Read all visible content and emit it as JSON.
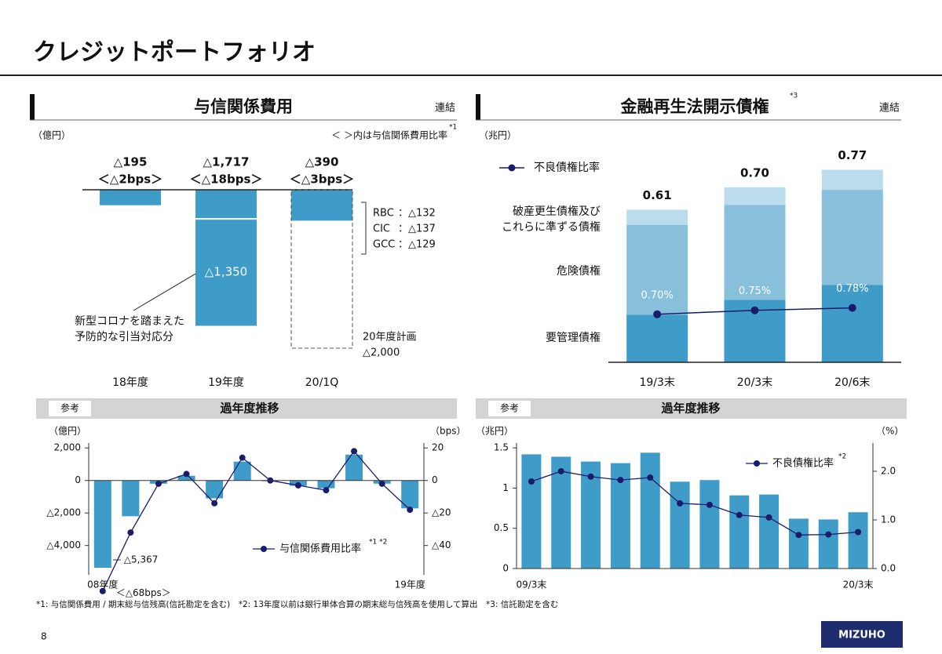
{
  "title": "クレジットポートフォリオ",
  "chart_data": [
    {
      "type": "bar",
      "title": "与信関係費用",
      "scope": "連結",
      "unit": "（億円）",
      "note": "＜ ＞内は与信関係費用比率",
      "note_marker": "*1",
      "categories": [
        "18年度",
        "19年度",
        "20/1Q"
      ],
      "values": [
        -195,
        -1717,
        -390
      ],
      "value_labels": [
        "△195",
        "△1,717",
        "△390"
      ],
      "ratio_labels": [
        "＜△2bps＞",
        "＜△18bps＞",
        "＜△3bps＞"
      ],
      "color": "#3f9cc9",
      "covid": {
        "name": [
          "新型コロナを踏まえた",
          "予防的な引当対応分"
        ],
        "values": [
          null,
          -1350,
          null
        ],
        "value_labels": [
          null,
          "△1,350",
          null
        ]
      },
      "plan": {
        "name": "20年度計画",
        "values": [
          null,
          null,
          -2000
        ],
        "value_labels": [
          null,
          null,
          "△2,000"
        ]
      },
      "breakdown": [
        {
          "name": "RBC",
          "value": -132,
          "label": "：△132"
        },
        {
          "name": "CIC",
          "value": -137,
          "label": "：△137"
        },
        {
          "name": "GCC",
          "value": -129,
          "label": "：△129"
        }
      ],
      "ylim": [
        -2000,
        0
      ]
    },
    {
      "type": "stacked_bar",
      "title": "金融再生法開示債権",
      "title_marker": "*3",
      "scope": "連結",
      "unit": "（兆円）",
      "categories": [
        "19/3末",
        "20/3末",
        "20/6末"
      ],
      "series": [
        {
          "name": "要管理債権",
          "color": "#3f9cc9",
          "values": [
            0.19,
            0.25,
            0.31
          ]
        },
        {
          "name": "危険債権",
          "color": "#88c0dc",
          "values": [
            0.36,
            0.38,
            0.38
          ]
        },
        {
          "name": [
            "破産更生債権及び",
            "これらに準ずる債権"
          ],
          "color": "#badcec",
          "values": [
            0.06,
            0.07,
            0.08
          ]
        },
        {
          "name": "不良債権比率",
          "type": "line",
          "axis": "y2",
          "color": "#1b1b6b",
          "values": [
            0.7,
            0.75,
            0.78
          ],
          "value_labels": [
            "0.70%",
            "0.75%",
            "0.78%"
          ]
        }
      ],
      "totals": {
        "values": [
          0.61,
          0.7,
          0.77
        ],
        "value_labels": [
          "0.61",
          "0.70",
          "0.77"
        ]
      },
      "ylim": [
        0,
        0.8
      ],
      "y2lim": [
        0.1,
        2.6
      ]
    },
    {
      "type": "combo",
      "tag": "参考",
      "title": "過年度推移",
      "unit": "（億円）",
      "unit2": "（bps）",
      "categories": [
        "08年度",
        null,
        null,
        null,
        null,
        null,
        null,
        null,
        null,
        null,
        null,
        "19年度"
      ],
      "series": [
        {
          "type": "bar",
          "color": "#3f9cc9",
          "values": [
            -5367,
            -2200,
            -200,
            290,
            -1100,
            1160,
            -50,
            -330,
            -480,
            1590,
            -195,
            -1717
          ],
          "value_labels": [
            "△5,367",
            null,
            null,
            null,
            null,
            null,
            null,
            null,
            null,
            null,
            null,
            null
          ]
        },
        {
          "name": "与信関係費用比率",
          "name_marker": "*1 *2",
          "type": "line",
          "axis": "y2",
          "color": "#1b1b6b",
          "values": [
            -68,
            -32,
            -2,
            4,
            -14,
            14,
            0,
            -3,
            -6,
            18,
            -2,
            -18
          ],
          "value_labels": [
            "＜△68bps＞",
            null,
            null,
            null,
            null,
            null,
            null,
            null,
            null,
            null,
            null,
            null
          ]
        }
      ],
      "ylim": [
        -5800,
        2300
      ],
      "yticks": [
        {
          "value": 2000,
          "label": "2,000"
        },
        0,
        {
          "value": -2000,
          "label": "△2,000"
        },
        {
          "value": -4000,
          "label": "△4,000"
        }
      ],
      "y2lim": [
        -58,
        23
      ],
      "y2ticks": [
        20,
        0,
        {
          "value": -20,
          "label": "△20"
        },
        {
          "value": -40,
          "label": "△40"
        }
      ]
    },
    {
      "type": "combo",
      "tag": "参考",
      "title": "過年度推移",
      "unit": "（兆円）",
      "unit2": "（%）",
      "categories": [
        "09/3末",
        null,
        null,
        null,
        null,
        null,
        null,
        null,
        null,
        null,
        null,
        "20/3末"
      ],
      "series": [
        {
          "type": "bar",
          "color": "#3f9cc9",
          "values": [
            1.42,
            1.39,
            1.33,
            1.31,
            1.44,
            1.08,
            1.1,
            0.91,
            0.92,
            0.62,
            0.61,
            0.7
          ]
        },
        {
          "name": "不良債権比率",
          "name_marker": "*2",
          "type": "line",
          "axis": "y2",
          "color": "#1b1b6b",
          "values": [
            1.79,
            2.0,
            1.89,
            1.82,
            1.87,
            1.34,
            1.31,
            1.1,
            1.05,
            0.69,
            0.7,
            0.75
          ]
        }
      ],
      "ylim": [
        0,
        1.56
      ],
      "yticks": [
        0,
        0.5,
        1,
        1.5
      ],
      "y2lim": [
        0,
        2.58
      ],
      "y2ticks": [
        {
          "value": 0,
          "label": "0.0"
        },
        {
          "value": 1,
          "label": "1.0"
        },
        {
          "value": 2,
          "label": "2.0"
        }
      ]
    }
  ],
  "footnote": "*1: 与信関係費用 / 期末総与信残高(信託勘定を含む)　*2: 13年度以前は銀行単体合算の期末総与信残高を使用して算出　*3: 信託勘定を含む",
  "page_number": "8",
  "logo": "MIZUHO"
}
